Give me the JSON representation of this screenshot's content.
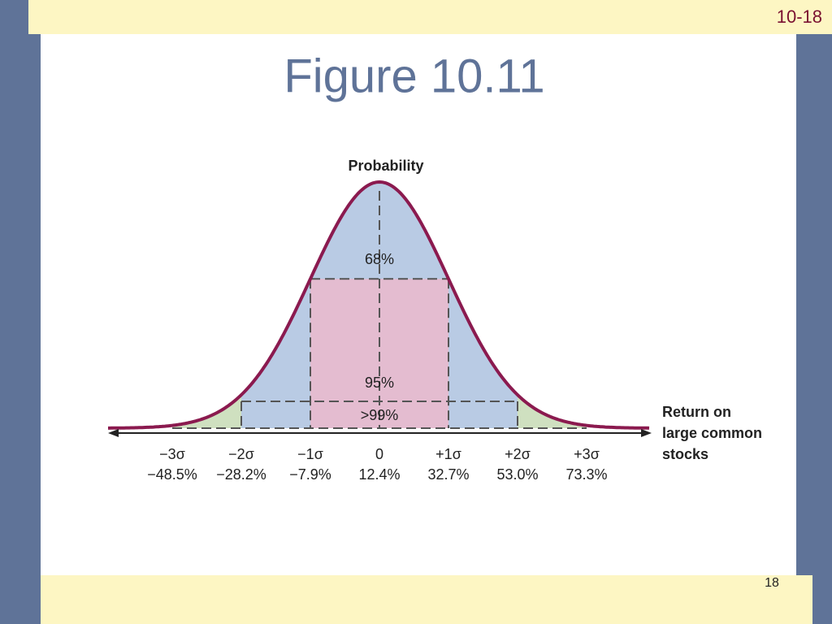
{
  "slide_label": "10-18",
  "title": "Figure 10.11",
  "figure": {
    "y_label": "Probability",
    "x_label_lines": [
      "Return on",
      "large common",
      "stocks"
    ],
    "regions": [
      "68%",
      "95%",
      ">99%"
    ],
    "ticks": [
      {
        "sigma": "−3σ",
        "return": "−48.5%"
      },
      {
        "sigma": "−2σ",
        "return": "−28.2%"
      },
      {
        "sigma": "−1σ",
        "return": "−7.9%"
      },
      {
        "sigma": "0",
        "return": "12.4%"
      },
      {
        "sigma": "+1σ",
        "return": "32.7%"
      },
      {
        "sigma": "+2σ",
        "return": "53.0%"
      },
      {
        "sigma": "+3σ",
        "return": "73.3%"
      }
    ]
  },
  "page_number": "18"
}
